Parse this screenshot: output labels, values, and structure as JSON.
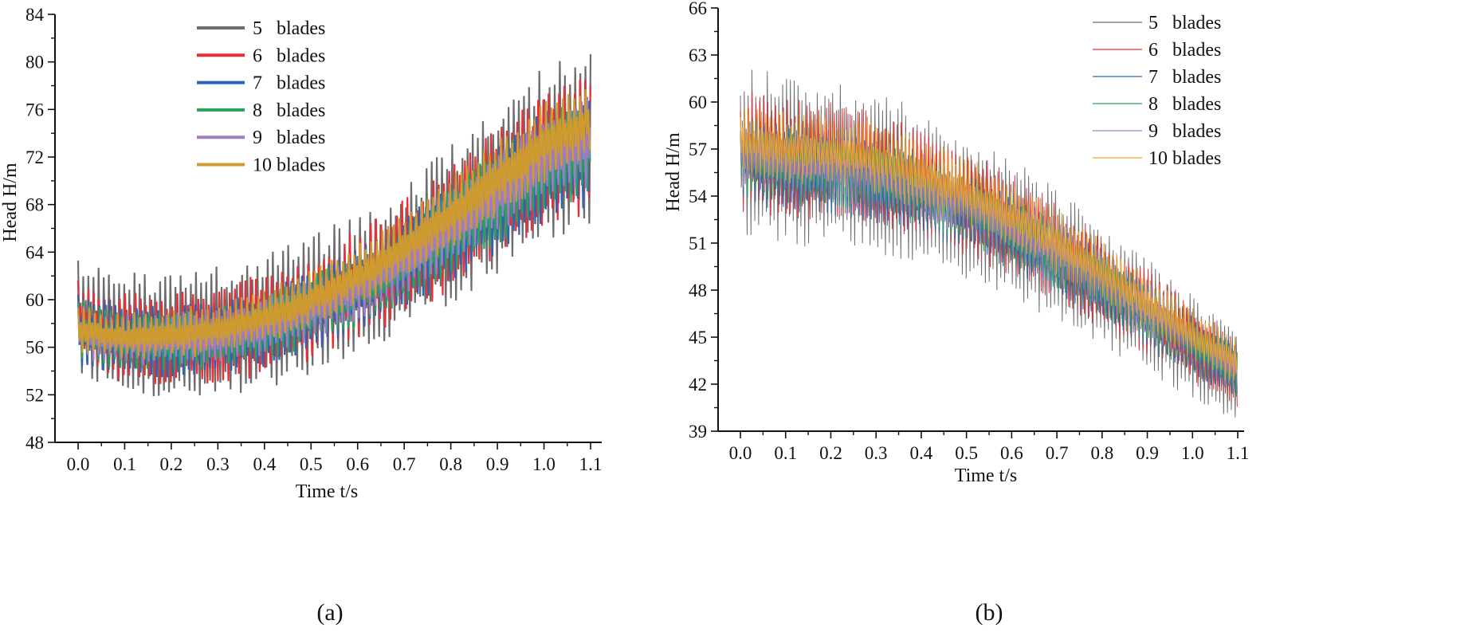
{
  "chart_data": [
    {
      "id": "a",
      "type": "line",
      "caption": "(a)",
      "xlabel": "Time t/s",
      "ylabel": "Head H/m",
      "xlim": [
        0.0,
        1.1
      ],
      "ylim": [
        48,
        84
      ],
      "xticks": [
        "0.0",
        "0.1",
        "0.2",
        "0.3",
        "0.4",
        "0.5",
        "0.6",
        "0.7",
        "0.8",
        "0.9",
        "1.0",
        "1.1"
      ],
      "yticks": [
        "48",
        "52",
        "56",
        "60",
        "64",
        "68",
        "72",
        "76",
        "80",
        "84"
      ],
      "legend_position": "top-center",
      "series": [
        {
          "name": "5   blades",
          "color": "#6d6d6d",
          "center": [
            [
              0,
              58.5
            ],
            [
              0.1,
              57.2
            ],
            [
              0.2,
              57.0
            ],
            [
              0.3,
              57.3
            ],
            [
              0.4,
              58.1
            ],
            [
              0.5,
              59.5
            ],
            [
              0.6,
              61.3
            ],
            [
              0.7,
              63.6
            ],
            [
              0.8,
              66.3
            ],
            [
              0.9,
              69.3
            ],
            [
              1.0,
              72.3
            ],
            [
              1.1,
              73.8
            ]
          ],
          "amplitude": [
            [
              0,
              4.5
            ],
            [
              0.1,
              4.1
            ],
            [
              0.3,
              4.4
            ],
            [
              0.5,
              4.7
            ],
            [
              0.7,
              5.1
            ],
            [
              0.9,
              5.7
            ],
            [
              1.1,
              6.3
            ]
          ]
        },
        {
          "name": "6   blades",
          "color": "#ee2c35",
          "center": [
            [
              0,
              58.0
            ],
            [
              0.1,
              56.9
            ],
            [
              0.2,
              56.8
            ],
            [
              0.3,
              57.1
            ],
            [
              0.4,
              57.9
            ],
            [
              0.5,
              59.3
            ],
            [
              0.6,
              61.1
            ],
            [
              0.7,
              63.4
            ],
            [
              0.8,
              66.1
            ],
            [
              0.9,
              69.0
            ],
            [
              1.0,
              71.8
            ],
            [
              1.1,
              73.2
            ]
          ],
          "amplitude": [
            [
              0,
              3.4
            ],
            [
              0.1,
              3.1
            ],
            [
              0.3,
              3.3
            ],
            [
              0.5,
              3.7
            ],
            [
              0.7,
              4.1
            ],
            [
              0.9,
              4.5
            ],
            [
              1.1,
              4.8
            ]
          ]
        },
        {
          "name": "7   blades",
          "color": "#2d63b5",
          "center": [
            [
              0,
              57.6
            ],
            [
              0.1,
              56.6
            ],
            [
              0.2,
              56.5
            ],
            [
              0.3,
              56.8
            ],
            [
              0.4,
              57.6
            ],
            [
              0.5,
              58.9
            ],
            [
              0.6,
              60.7
            ],
            [
              0.7,
              63.0
            ],
            [
              0.8,
              65.6
            ],
            [
              0.9,
              68.4
            ],
            [
              1.0,
              71.2
            ],
            [
              1.1,
              72.6
            ]
          ],
          "amplitude": [
            [
              0,
              2.6
            ],
            [
              0.1,
              2.4
            ],
            [
              0.3,
              2.5
            ],
            [
              0.5,
              2.8
            ],
            [
              0.7,
              3.2
            ],
            [
              0.9,
              3.6
            ],
            [
              1.1,
              4.0
            ]
          ]
        },
        {
          "name": "8   blades",
          "color": "#27a35d",
          "center": [
            [
              0,
              57.4
            ],
            [
              0.1,
              56.6
            ],
            [
              0.2,
              56.5
            ],
            [
              0.3,
              56.8
            ],
            [
              0.4,
              57.6
            ],
            [
              0.5,
              59.0
            ],
            [
              0.6,
              60.8
            ],
            [
              0.7,
              63.1
            ],
            [
              0.8,
              65.8
            ],
            [
              0.9,
              68.6
            ],
            [
              1.0,
              71.4
            ],
            [
              1.1,
              72.9
            ]
          ],
          "amplitude": [
            [
              0,
              2.2
            ],
            [
              0.1,
              2.0
            ],
            [
              0.3,
              2.1
            ],
            [
              0.5,
              2.4
            ],
            [
              0.7,
              2.8
            ],
            [
              0.9,
              3.2
            ],
            [
              1.1,
              3.6
            ]
          ]
        },
        {
          "name": "9   blades",
          "color": "#a07cc7",
          "center": [
            [
              0,
              57.3
            ],
            [
              0.1,
              56.6
            ],
            [
              0.2,
              56.6
            ],
            [
              0.3,
              56.9
            ],
            [
              0.4,
              57.8
            ],
            [
              0.5,
              59.2
            ],
            [
              0.6,
              61.0
            ],
            [
              0.7,
              63.4
            ],
            [
              0.8,
              66.1
            ],
            [
              0.9,
              69.0
            ],
            [
              1.0,
              71.9
            ],
            [
              1.1,
              73.5
            ]
          ],
          "amplitude": [
            [
              0,
              1.9
            ],
            [
              0.1,
              1.8
            ],
            [
              0.3,
              1.9
            ],
            [
              0.5,
              2.1
            ],
            [
              0.7,
              2.4
            ],
            [
              0.9,
              2.8
            ],
            [
              1.1,
              3.2
            ]
          ]
        },
        {
          "name": "10 blades",
          "color": "#cf9b2e",
          "center": [
            [
              0,
              57.5
            ],
            [
              0.1,
              56.9
            ],
            [
              0.2,
              57.1
            ],
            [
              0.3,
              57.6
            ],
            [
              0.4,
              58.5
            ],
            [
              0.5,
              60.0
            ],
            [
              0.6,
              62.0
            ],
            [
              0.7,
              64.5
            ],
            [
              0.8,
              67.3
            ],
            [
              0.9,
              70.2
            ],
            [
              1.0,
              73.2
            ],
            [
              1.1,
              75.2
            ]
          ],
          "amplitude": [
            [
              0,
              1.6
            ],
            [
              0.1,
              1.6
            ],
            [
              0.3,
              1.8
            ],
            [
              0.5,
              2.0
            ],
            [
              0.7,
              2.3
            ],
            [
              0.9,
              2.6
            ],
            [
              1.1,
              2.9
            ]
          ]
        }
      ]
    },
    {
      "id": "b",
      "type": "line",
      "caption": "(b)",
      "xlabel": "Time t/s",
      "ylabel": "Head H/m",
      "xlim": [
        0.0,
        1.1
      ],
      "ylim": [
        39,
        66
      ],
      "xticks": [
        "0.0",
        "0.1",
        "0.2",
        "0.3",
        "0.4",
        "0.5",
        "0.6",
        "0.7",
        "0.8",
        "0.9",
        "1.0",
        "1.1"
      ],
      "yticks": [
        "39",
        "42",
        "45",
        "48",
        "51",
        "54",
        "57",
        "60",
        "63",
        "66"
      ],
      "legend_position": "top-right",
      "series": [
        {
          "name": "5   blades",
          "color": "#6d6d6d",
          "center": [
            [
              0,
              57.0
            ],
            [
              0.1,
              56.3
            ],
            [
              0.2,
              56.0
            ],
            [
              0.3,
              55.4
            ],
            [
              0.4,
              54.6
            ],
            [
              0.5,
              53.4
            ],
            [
              0.6,
              51.9
            ],
            [
              0.7,
              50.2
            ],
            [
              0.8,
              48.3
            ],
            [
              0.9,
              46.4
            ],
            [
              1.0,
              44.4
            ],
            [
              1.1,
              42.4
            ]
          ],
          "amplitude": [
            [
              0,
              4.5
            ],
            [
              0.3,
              4.2
            ],
            [
              0.6,
              3.6
            ],
            [
              0.9,
              3.0
            ],
            [
              1.1,
              2.3
            ]
          ]
        },
        {
          "name": "6   blades",
          "color": "#ee2c35",
          "center": [
            [
              0,
              57.0
            ],
            [
              0.1,
              56.4
            ],
            [
              0.2,
              56.2
            ],
            [
              0.3,
              55.6
            ],
            [
              0.4,
              54.8
            ],
            [
              0.5,
              53.6
            ],
            [
              0.6,
              52.1
            ],
            [
              0.7,
              50.4
            ],
            [
              0.8,
              48.5
            ],
            [
              0.9,
              46.6
            ],
            [
              1.0,
              44.6
            ],
            [
              1.1,
              42.6
            ]
          ],
          "amplitude": [
            [
              0,
              3.2
            ],
            [
              0.3,
              3.0
            ],
            [
              0.6,
              2.7
            ],
            [
              0.9,
              2.3
            ],
            [
              1.1,
              1.9
            ]
          ]
        },
        {
          "name": "7   blades",
          "color": "#2d63b5",
          "center": [
            [
              0,
              56.4
            ],
            [
              0.1,
              55.8
            ],
            [
              0.2,
              55.5
            ],
            [
              0.3,
              55.0
            ],
            [
              0.4,
              54.2
            ],
            [
              0.5,
              53.1
            ],
            [
              0.6,
              51.7
            ],
            [
              0.7,
              50.1
            ],
            [
              0.8,
              48.3
            ],
            [
              0.9,
              46.4
            ],
            [
              1.0,
              44.5
            ],
            [
              1.1,
              42.6
            ]
          ],
          "amplitude": [
            [
              0,
              2.3
            ],
            [
              0.3,
              2.2
            ],
            [
              0.6,
              2.0
            ],
            [
              0.9,
              1.8
            ],
            [
              1.1,
              1.6
            ]
          ]
        },
        {
          "name": "8   blades",
          "color": "#27a35d",
          "center": [
            [
              0,
              56.5
            ],
            [
              0.1,
              55.9
            ],
            [
              0.2,
              55.6
            ],
            [
              0.3,
              55.1
            ],
            [
              0.4,
              54.3
            ],
            [
              0.5,
              53.2
            ],
            [
              0.6,
              51.8
            ],
            [
              0.7,
              50.2
            ],
            [
              0.8,
              48.4
            ],
            [
              0.9,
              46.5
            ],
            [
              1.0,
              44.6
            ],
            [
              1.1,
              42.7
            ]
          ],
          "amplitude": [
            [
              0,
              2.0
            ],
            [
              0.3,
              1.9
            ],
            [
              0.6,
              1.8
            ],
            [
              0.9,
              1.6
            ],
            [
              1.1,
              1.5
            ]
          ]
        },
        {
          "name": "9   blades",
          "color": "#a07cc7",
          "center": [
            [
              0,
              56.8
            ],
            [
              0.1,
              56.2
            ],
            [
              0.2,
              55.9
            ],
            [
              0.3,
              55.4
            ],
            [
              0.4,
              54.6
            ],
            [
              0.5,
              53.5
            ],
            [
              0.6,
              52.1
            ],
            [
              0.7,
              50.5
            ],
            [
              0.8,
              48.7
            ],
            [
              0.9,
              46.8
            ],
            [
              1.0,
              44.9
            ],
            [
              1.1,
              43.0
            ]
          ],
          "amplitude": [
            [
              0,
              1.8
            ],
            [
              0.3,
              1.8
            ],
            [
              0.6,
              1.7
            ],
            [
              0.9,
              1.5
            ],
            [
              1.1,
              1.4
            ]
          ]
        },
        {
          "name": "10 blades",
          "color": "#e8a628",
          "center": [
            [
              0,
              57.6
            ],
            [
              0.1,
              57.1
            ],
            [
              0.2,
              56.9
            ],
            [
              0.3,
              56.4
            ],
            [
              0.4,
              55.5
            ],
            [
              0.5,
              54.3
            ],
            [
              0.6,
              52.8
            ],
            [
              0.7,
              51.1
            ],
            [
              0.8,
              49.2
            ],
            [
              0.9,
              47.2
            ],
            [
              1.0,
              45.2
            ],
            [
              1.1,
              43.4
            ]
          ],
          "amplitude": [
            [
              0,
              1.8
            ],
            [
              0.3,
              1.9
            ],
            [
              0.6,
              1.8
            ],
            [
              0.9,
              1.5
            ],
            [
              1.1,
              1.3
            ]
          ]
        }
      ]
    }
  ]
}
